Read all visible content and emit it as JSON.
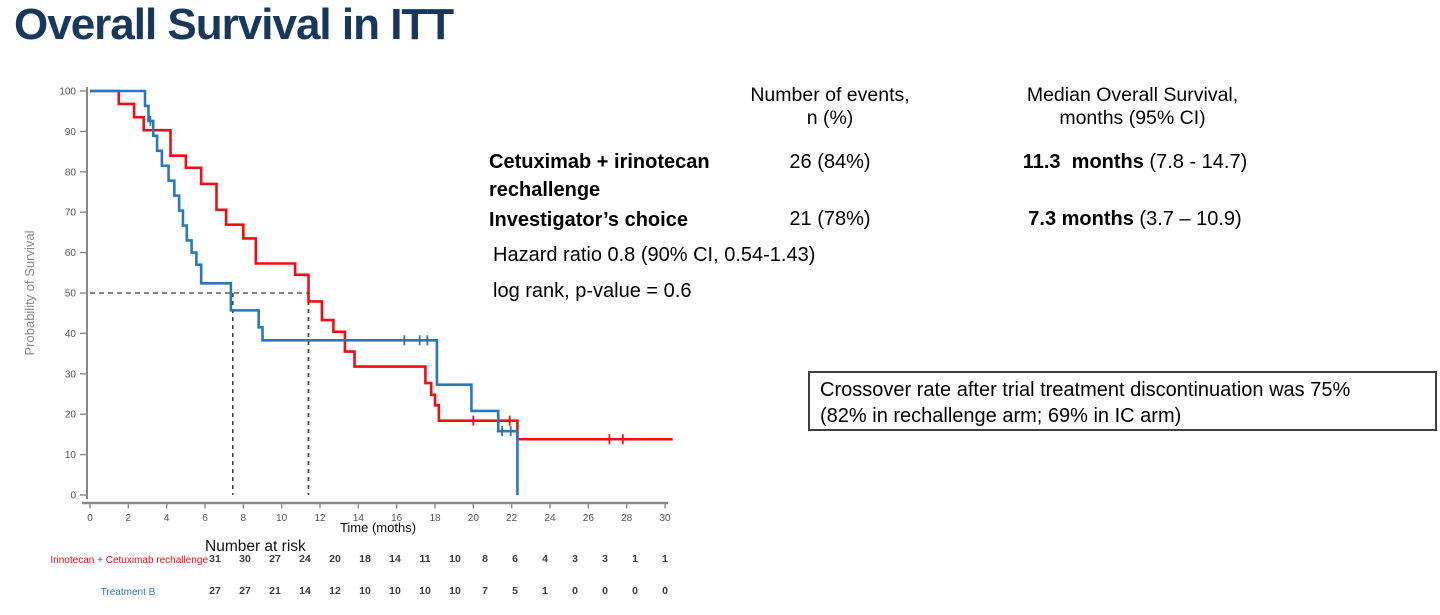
{
  "title": "Overall Survival in ITT",
  "chart_data": {
    "type": "line",
    "subtype": "kaplan-meier-step",
    "title": "",
    "xlabel": "Time (moths)",
    "ylabel": "Probability of Survival",
    "xlim": [
      0,
      30.5
    ],
    "ylim": [
      0,
      100
    ],
    "x_ticks": [
      0,
      2,
      4,
      6,
      8,
      10,
      12,
      14,
      16,
      18,
      20,
      22,
      24,
      26,
      28,
      30
    ],
    "y_ticks": [
      0,
      10,
      20,
      30,
      40,
      50,
      60,
      70,
      80,
      90,
      100
    ],
    "grid": "off",
    "median_markers": {
      "survival": 50,
      "times": [
        7.45,
        11.4
      ],
      "h_extent": 11.4
    },
    "series": [
      {
        "name": "Irinotecan + Cetuximab rechallenge",
        "color": "#f10e10",
        "start": 100,
        "drops": [
          [
            1.5,
            96.8
          ],
          [
            2.3,
            93.5
          ],
          [
            2.8,
            90.3
          ],
          [
            4.2,
            84.0
          ],
          [
            5.0,
            81.0
          ],
          [
            5.8,
            77.0
          ],
          [
            6.6,
            70.6
          ],
          [
            7.1,
            66.9
          ],
          [
            8.0,
            63.5
          ],
          [
            8.65,
            57.3
          ],
          [
            10.7,
            54.5
          ],
          [
            11.4,
            47.9
          ],
          [
            12.1,
            43.3
          ],
          [
            12.7,
            40.4
          ],
          [
            13.3,
            35.5
          ],
          [
            13.8,
            31.8
          ],
          [
            17.5,
            27.7
          ],
          [
            17.8,
            24.8
          ],
          [
            18.0,
            22.2
          ],
          [
            18.2,
            18.4
          ],
          [
            22.3,
            13.8
          ]
        ],
        "end_time": 30.4,
        "censors": [
          [
            20.0,
            18.4
          ],
          [
            21.9,
            18.4
          ],
          [
            27.1,
            13.8
          ],
          [
            27.8,
            13.8
          ]
        ]
      },
      {
        "name": "Treatment B",
        "color": "#2878be",
        "start": 100,
        "drops": [
          [
            2.87,
            96.3
          ],
          [
            3.05,
            92.6
          ],
          [
            3.3,
            88.9
          ],
          [
            3.5,
            85.2
          ],
          [
            3.75,
            81.5
          ],
          [
            4.1,
            77.8
          ],
          [
            4.4,
            74.1
          ],
          [
            4.65,
            70.4
          ],
          [
            4.85,
            66.7
          ],
          [
            5.05,
            63.0
          ],
          [
            5.3,
            60.0
          ],
          [
            5.55,
            57.0
          ],
          [
            5.8,
            52.4
          ],
          [
            7.35,
            45.7
          ],
          [
            8.8,
            41.5
          ],
          [
            9.0,
            38.3
          ],
          [
            18.1,
            27.3
          ],
          [
            19.9,
            20.8
          ],
          [
            21.3,
            15.8
          ],
          [
            22.3,
            0
          ]
        ],
        "end_time": 22.3,
        "censors": [
          [
            3.15,
            92.6
          ],
          [
            16.4,
            38.3
          ],
          [
            17.2,
            38.3
          ],
          [
            17.6,
            38.3
          ],
          [
            21.5,
            15.8
          ],
          [
            21.95,
            15.8
          ]
        ]
      }
    ],
    "number_at_risk": {
      "title": "Number at risk",
      "times": [
        0,
        2,
        4,
        6,
        8,
        10,
        12,
        14,
        16,
        18,
        20,
        22,
        24,
        26,
        28,
        30
      ],
      "rows": [
        {
          "label": "Irinotecan + Cetuximab rechallenge",
          "color": "#f10e10",
          "values": [
            31,
            30,
            27,
            24,
            20,
            18,
            14,
            11,
            10,
            8,
            6,
            4,
            3,
            3,
            1,
            1
          ]
        },
        {
          "label": "Treatment B",
          "color": "#2878be",
          "values": [
            27,
            27,
            21,
            14,
            12,
            10,
            10,
            10,
            10,
            7,
            5,
            1,
            0,
            0,
            0,
            0
          ]
        }
      ]
    }
  },
  "stats_table": {
    "header_events": [
      "Number of events,",
      "n (%)"
    ],
    "header_median": [
      "Median Overall Survival,",
      "months (95% CI)"
    ],
    "rows": [
      {
        "label_lines": [
          "Cetuximab + irinotecan",
          "rechallenge"
        ],
        "events": "26 (84%)",
        "median_bold": "11.3  months",
        "median_ci": " (7.8 - 14.7)"
      },
      {
        "label_lines": [
          "Investigator’s choice"
        ],
        "events": "21 (78%)",
        "median_bold": "7.3 months",
        "median_ci": " (3.7 – 10.9)"
      }
    ],
    "hazard": "Hazard ratio 0.8 (90% CI, 0.54-1.43)",
    "logrank": "log rank, p-value = 0.6"
  },
  "callout": {
    "line1": "Crossover rate after trial treatment discontinuation was 75%",
    "line2": "(82% in rechallenge arm; 69% in IC arm)"
  },
  "colors": {
    "title": "#17375d",
    "red_arm": "#f10e10",
    "blue_arm": "#2878be",
    "axis": "#8a8a8a",
    "dashed": "#3f3f3f"
  }
}
